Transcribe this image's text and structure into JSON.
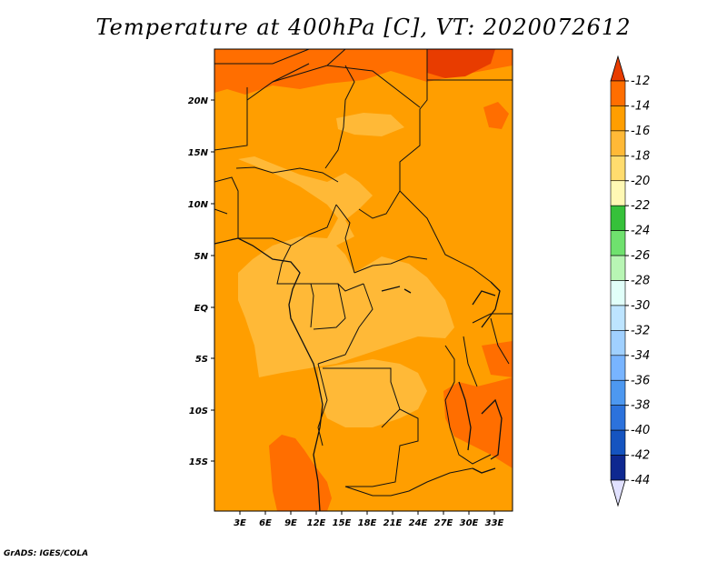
{
  "title": "Temperature at 400hPa [C], VT: 2020072612",
  "credit": "GrADS: IGES/COLA",
  "lat_ticks": [
    "20N",
    "15N",
    "10N",
    "5N",
    "EQ",
    "5S",
    "10S",
    "15S"
  ],
  "lon_ticks": [
    "3E",
    "6E",
    "9E",
    "12E",
    "15E",
    "18E",
    "21E",
    "24E",
    "27E",
    "30E",
    "33E"
  ],
  "colorbar": {
    "labels": [
      "-12",
      "-14",
      "-16",
      "-18",
      "-20",
      "-22",
      "-24",
      "-26",
      "-28",
      "-30",
      "-32",
      "-34",
      "-36",
      "-38",
      "-40",
      "-42",
      "-44"
    ],
    "colors": [
      "#e83c00",
      "#ff6e00",
      "#ff9e00",
      "#ffb937",
      "#ffdc6e",
      "#fff8b4",
      "#36c13a",
      "#6fe16e",
      "#b8f5b4",
      "#e1fff9",
      "#bde4ff",
      "#a0d0ff",
      "#78b4ff",
      "#4d98f0",
      "#2c72dc",
      "#1554c0",
      "#0e2890",
      "#e1e1ff"
    ]
  },
  "map_colors": {
    "band_m14": "#ff6e00",
    "band_m16": "#ff9e00",
    "band_m18": "#ffb937",
    "band_m12": "#e83c00"
  }
}
